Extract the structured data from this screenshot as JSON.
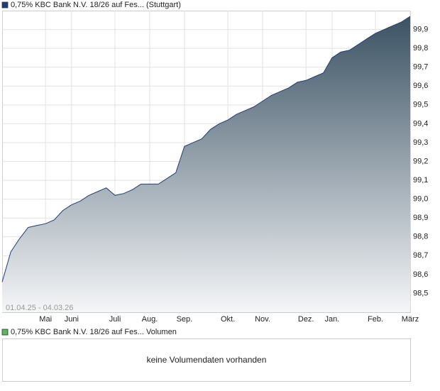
{
  "chart_data": {
    "type": "area",
    "title": "(Stuttgart)",
    "subtitle": "01.04.25 - 04.03.26",
    "categories": [
      null,
      null,
      null,
      null,
      null,
      "Mai",
      null,
      null,
      "Juni",
      null,
      null,
      null,
      null,
      "Juli",
      null,
      null,
      null,
      "Aug.",
      null,
      null,
      null,
      "Sep.",
      null,
      null,
      null,
      null,
      "Okt.",
      null,
      null,
      null,
      "Nov.",
      null,
      null,
      null,
      null,
      "Dez.",
      null,
      null,
      "Jan.",
      null,
      null,
      null,
      null,
      "Feb.",
      null,
      null,
      null,
      "März"
    ],
    "series": [
      {
        "name": "0,75% KBC Bank N.V. 18/26 auf Fes...",
        "color": "#1f3f7a",
        "values": [
          98.56,
          98.72,
          98.79,
          98.85,
          98.86,
          98.87,
          98.89,
          98.94,
          98.97,
          98.99,
          99.02,
          99.04,
          99.06,
          99.02,
          99.03,
          99.05,
          99.08,
          99.08,
          99.08,
          99.11,
          99.14,
          99.28,
          99.3,
          99.32,
          99.37,
          99.4,
          99.42,
          99.45,
          99.47,
          99.49,
          99.52,
          99.55,
          99.57,
          99.59,
          99.62,
          99.63,
          99.65,
          99.67,
          99.75,
          99.78,
          99.79,
          99.82,
          99.85,
          99.88,
          99.9,
          99.92,
          99.94,
          99.97
        ]
      }
    ],
    "ylim": [
      98.4,
      100.0
    ],
    "yticks": [
      {
        "value": 98.5,
        "label": "98,5"
      },
      {
        "value": 98.6,
        "label": "98,6"
      },
      {
        "value": 98.7,
        "label": "98,7"
      },
      {
        "value": 98.8,
        "label": "98,8"
      },
      {
        "value": 98.9,
        "label": "98,9"
      },
      {
        "value": 99.0,
        "label": "99,0"
      },
      {
        "value": 99.1,
        "label": "99,1"
      },
      {
        "value": 99.2,
        "label": "99,2"
      },
      {
        "value": 99.3,
        "label": "99,3"
      },
      {
        "value": 99.4,
        "label": "99,4"
      },
      {
        "value": 99.5,
        "label": "99,5"
      },
      {
        "value": 99.6,
        "label": "99,6"
      },
      {
        "value": 99.7,
        "label": "99,7"
      },
      {
        "value": 99.8,
        "label": "99,8"
      },
      {
        "value": 99.9,
        "label": "99,9"
      }
    ],
    "grid": true
  },
  "volume_panel": {
    "series_name": "0,75% KBC Bank N.V. 18/26 auf Fes...",
    "label": "Volumen",
    "color": "#5cb85c",
    "message": "keine Volumendaten vorhanden"
  }
}
